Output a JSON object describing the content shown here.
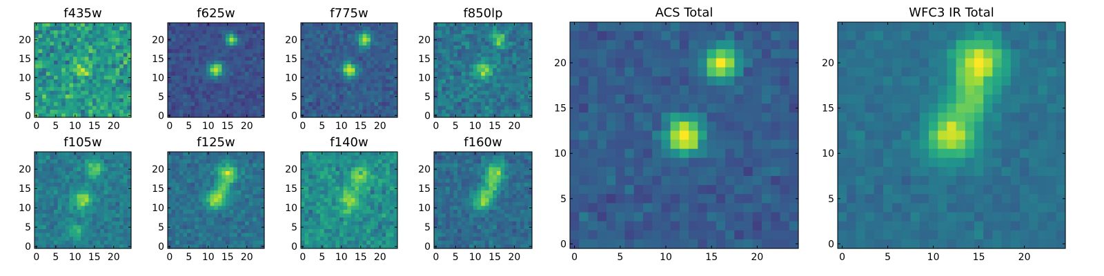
{
  "figure": {
    "background": "#ffffff",
    "colormap": "viridis"
  },
  "chart_data": [
    {
      "type": "heatmap",
      "title": "f435w",
      "grid_size": 25,
      "xlim": [
        -0.5,
        24.5
      ],
      "ylim": [
        -0.5,
        24.5
      ],
      "x_ticks": [
        0,
        5,
        10,
        15,
        20
      ],
      "y_ticks": [
        0,
        5,
        10,
        15,
        20
      ],
      "noise_level": 0.3,
      "base_level": 0.55,
      "sources": [
        {
          "x": 12,
          "y": 12,
          "sigma": 1.6,
          "amp": 0.25
        }
      ]
    },
    {
      "type": "heatmap",
      "title": "f625w",
      "grid_size": 25,
      "xlim": [
        -0.5,
        24.5
      ],
      "ylim": [
        -0.5,
        24.5
      ],
      "x_ticks": [
        0,
        5,
        10,
        15,
        20
      ],
      "y_ticks": [
        0,
        5,
        10,
        15,
        20
      ],
      "noise_level": 0.12,
      "base_level": 0.25,
      "sources": [
        {
          "x": 12,
          "y": 12,
          "sigma": 1.3,
          "amp": 0.75
        },
        {
          "x": 16,
          "y": 20,
          "sigma": 1.1,
          "amp": 0.65
        }
      ]
    },
    {
      "type": "heatmap",
      "title": "f775w",
      "grid_size": 25,
      "xlim": [
        -0.5,
        24.5
      ],
      "ylim": [
        -0.5,
        24.5
      ],
      "x_ticks": [
        0,
        5,
        10,
        15,
        20
      ],
      "y_ticks": [
        0,
        5,
        10,
        15,
        20
      ],
      "noise_level": 0.14,
      "base_level": 0.3,
      "sources": [
        {
          "x": 12,
          "y": 12,
          "sigma": 1.3,
          "amp": 0.65
        },
        {
          "x": 16,
          "y": 20,
          "sigma": 1.2,
          "amp": 0.65
        }
      ]
    },
    {
      "type": "heatmap",
      "title": "f850lp",
      "grid_size": 25,
      "xlim": [
        -0.5,
        24.5
      ],
      "ylim": [
        -0.5,
        24.5
      ],
      "x_ticks": [
        0,
        5,
        10,
        15,
        20
      ],
      "y_ticks": [
        0,
        5,
        10,
        15,
        20
      ],
      "noise_level": 0.2,
      "base_level": 0.4,
      "sources": [
        {
          "x": 12,
          "y": 12,
          "sigma": 1.5,
          "amp": 0.5
        },
        {
          "x": 16,
          "y": 20,
          "sigma": 1.2,
          "amp": 0.5
        }
      ]
    },
    {
      "type": "heatmap",
      "title": "f105w",
      "grid_size": 25,
      "xlim": [
        -0.5,
        24.5
      ],
      "ylim": [
        -0.5,
        24.5
      ],
      "x_ticks": [
        0,
        5,
        10,
        15,
        20
      ],
      "y_ticks": [
        0,
        5,
        10,
        15,
        20
      ],
      "noise_level": 0.16,
      "base_level": 0.42,
      "sources": [
        {
          "x": 12,
          "y": 12,
          "sigma": 1.8,
          "amp": 0.45
        },
        {
          "x": 15,
          "y": 20,
          "sigma": 1.6,
          "amp": 0.4
        },
        {
          "x": 10,
          "y": 4,
          "sigma": 1.6,
          "amp": 0.25
        }
      ]
    },
    {
      "type": "heatmap",
      "title": "f125w",
      "grid_size": 25,
      "xlim": [
        -0.5,
        24.5
      ],
      "ylim": [
        -0.5,
        24.5
      ],
      "x_ticks": [
        0,
        5,
        10,
        15,
        20
      ],
      "y_ticks": [
        0,
        5,
        10,
        15,
        20
      ],
      "noise_level": 0.15,
      "base_level": 0.38,
      "sources": [
        {
          "x": 12,
          "y": 12,
          "sigma": 1.8,
          "amp": 0.5
        },
        {
          "x": 15,
          "y": 19,
          "sigma": 1.7,
          "amp": 0.5
        },
        {
          "x": 14,
          "y": 15,
          "sigma": 1.5,
          "amp": 0.3
        }
      ]
    },
    {
      "type": "heatmap",
      "title": "f140w",
      "grid_size": 25,
      "xlim": [
        -0.5,
        24.5
      ],
      "ylim": [
        -0.5,
        24.5
      ],
      "x_ticks": [
        0,
        5,
        10,
        15,
        20
      ],
      "y_ticks": [
        0,
        5,
        10,
        15,
        20
      ],
      "noise_level": 0.2,
      "base_level": 0.5,
      "sources": [
        {
          "x": 12,
          "y": 12,
          "sigma": 2.0,
          "amp": 0.3
        },
        {
          "x": 15,
          "y": 18,
          "sigma": 2.0,
          "amp": 0.3
        }
      ]
    },
    {
      "type": "heatmap",
      "title": "f160w",
      "grid_size": 25,
      "xlim": [
        -0.5,
        24.5
      ],
      "ylim": [
        -0.5,
        24.5
      ],
      "x_ticks": [
        0,
        5,
        10,
        15,
        20
      ],
      "y_ticks": [
        0,
        5,
        10,
        15,
        20
      ],
      "noise_level": 0.16,
      "base_level": 0.36,
      "sources": [
        {
          "x": 12,
          "y": 12,
          "sigma": 1.8,
          "amp": 0.45
        },
        {
          "x": 15,
          "y": 19,
          "sigma": 1.8,
          "amp": 0.5
        },
        {
          "x": 14,
          "y": 15,
          "sigma": 1.5,
          "amp": 0.3
        }
      ]
    },
    {
      "type": "heatmap",
      "title": "ACS Total",
      "grid_size": 25,
      "xlim": [
        -0.5,
        24.5
      ],
      "ylim": [
        -0.5,
        24.5
      ],
      "x_ticks": [
        0,
        5,
        10,
        15,
        20
      ],
      "y_ticks": [
        0,
        5,
        10,
        15,
        20
      ],
      "noise_level": 0.13,
      "base_level": 0.3,
      "sources": [
        {
          "x": 12,
          "y": 12,
          "sigma": 1.4,
          "amp": 0.75
        },
        {
          "x": 16,
          "y": 20,
          "sigma": 1.3,
          "amp": 0.7
        }
      ]
    },
    {
      "type": "heatmap",
      "title": "WFC3 IR Total",
      "grid_size": 25,
      "xlim": [
        -0.5,
        24.5
      ],
      "ylim": [
        -0.5,
        24.5
      ],
      "x_ticks": [
        0,
        5,
        10,
        15,
        20
      ],
      "y_ticks": [
        0,
        5,
        10,
        15,
        20
      ],
      "noise_level": 0.09,
      "base_level": 0.38,
      "sources": [
        {
          "x": 12,
          "y": 12,
          "sigma": 1.9,
          "amp": 0.55
        },
        {
          "x": 15,
          "y": 20,
          "sigma": 1.9,
          "amp": 0.6
        },
        {
          "x": 14,
          "y": 16,
          "sigma": 1.5,
          "amp": 0.35
        }
      ]
    }
  ]
}
